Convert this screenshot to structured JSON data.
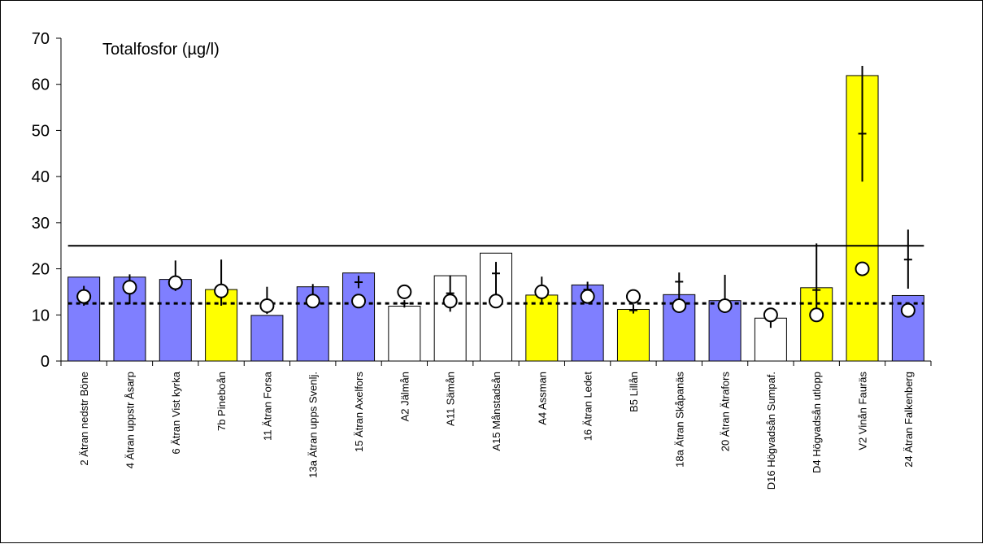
{
  "chart_data": {
    "type": "bar",
    "title": "Totalfosfor (µg/l)",
    "xlabel": "",
    "ylabel": "",
    "ylim": [
      0,
      70
    ],
    "yticks": [
      "0",
      "10",
      "20",
      "30",
      "40",
      "50",
      "60",
      "70"
    ],
    "categories": [
      "2 Ätran nedstr Böne",
      "4 Ätran uppstr Åsarp",
      "6 Ätran Vist kyrka",
      "7b Pineboån",
      "11 Ätran Forsa",
      "13a Ätran upps Svenlj.",
      "15 Ätran Axelfors",
      "A2 Jälmån",
      "A11 Sämån",
      "A15 Månstadsån",
      "A4 Assman",
      "16 Ätran Ledet",
      "B5 Lillån",
      "18a Ätran Skåpanäs",
      "20 Ätran Ätrafors",
      "D16 Högvadsån Sumpaf.",
      "D4 Högvadsån utlopp",
      "V2 Vinån Fauräs",
      "24 Ätran Falkenberg"
    ],
    "bar_values": [
      18.2,
      18.2,
      17.7,
      15.5,
      9.9,
      16.1,
      19.1,
      11.9,
      18.5,
      23.4,
      14.3,
      16.5,
      11.2,
      14.4,
      13.1,
      9.3,
      15.9,
      61.9,
      14.2
    ],
    "bar_colors": [
      "#7f7fff",
      "#7f7fff",
      "#7f7fff",
      "#ffff00",
      "#7f7fff",
      "#7f7fff",
      "#7f7fff",
      "#ffffff",
      "#ffffff",
      "#ffffff",
      "#ffff00",
      "#7f7fff",
      "#ffff00",
      "#7f7fff",
      "#7f7fff",
      "#ffffff",
      "#ffff00",
      "#ffff00",
      "#7f7fff"
    ],
    "circle_values": [
      14,
      16,
      17,
      15.2,
      12,
      13,
      13,
      15,
      13,
      13,
      15,
      14,
      14,
      12,
      12,
      10,
      10,
      20,
      11
    ],
    "whiskers": [
      {
        "low": 12,
        "high": 16.3,
        "median": 14
      },
      {
        "low": 12.3,
        "high": 18.8,
        "median": 16
      },
      {
        "low": 15.2,
        "high": 21.8,
        "median": 17.2
      },
      {
        "low": 12,
        "high": 22,
        "median": 15.2
      },
      {
        "low": 10.2,
        "high": 16.1,
        "median": 12.5
      },
      {
        "low": 12.3,
        "high": 16.7,
        "median": 13.5
      },
      {
        "low": 15.8,
        "high": 18.5,
        "median": 17.1
      },
      {
        "low": 11.6,
        "high": 13.2,
        "median": 12.5
      },
      {
        "low": 10.7,
        "high": 18.6,
        "median": 14.7
      },
      {
        "low": 13,
        "high": 21.5,
        "median": 19
      },
      {
        "low": 12.5,
        "high": 18.3,
        "median": 14.2
      },
      {
        "low": 13.5,
        "high": 17.2,
        "median": 15.5
      },
      {
        "low": 10.3,
        "high": 12.3,
        "median": 11
      },
      {
        "low": 12.5,
        "high": 19.2,
        "median": 17.2
      },
      {
        "low": 11.6,
        "high": 18.7,
        "median": 13
      },
      {
        "low": 7.2,
        "high": 11.2,
        "median": 9
      },
      {
        "low": 11,
        "high": 25.5,
        "median": 15.4
      },
      {
        "low": 38.9,
        "high": 64,
        "median": 49.3
      },
      {
        "low": 15.7,
        "high": 28.5,
        "median": 22
      }
    ],
    "reference_lines": [
      {
        "style": "solid",
        "value": 25
      },
      {
        "style": "dotted",
        "value": 12.5
      }
    ],
    "grid": false,
    "legend": "none"
  }
}
